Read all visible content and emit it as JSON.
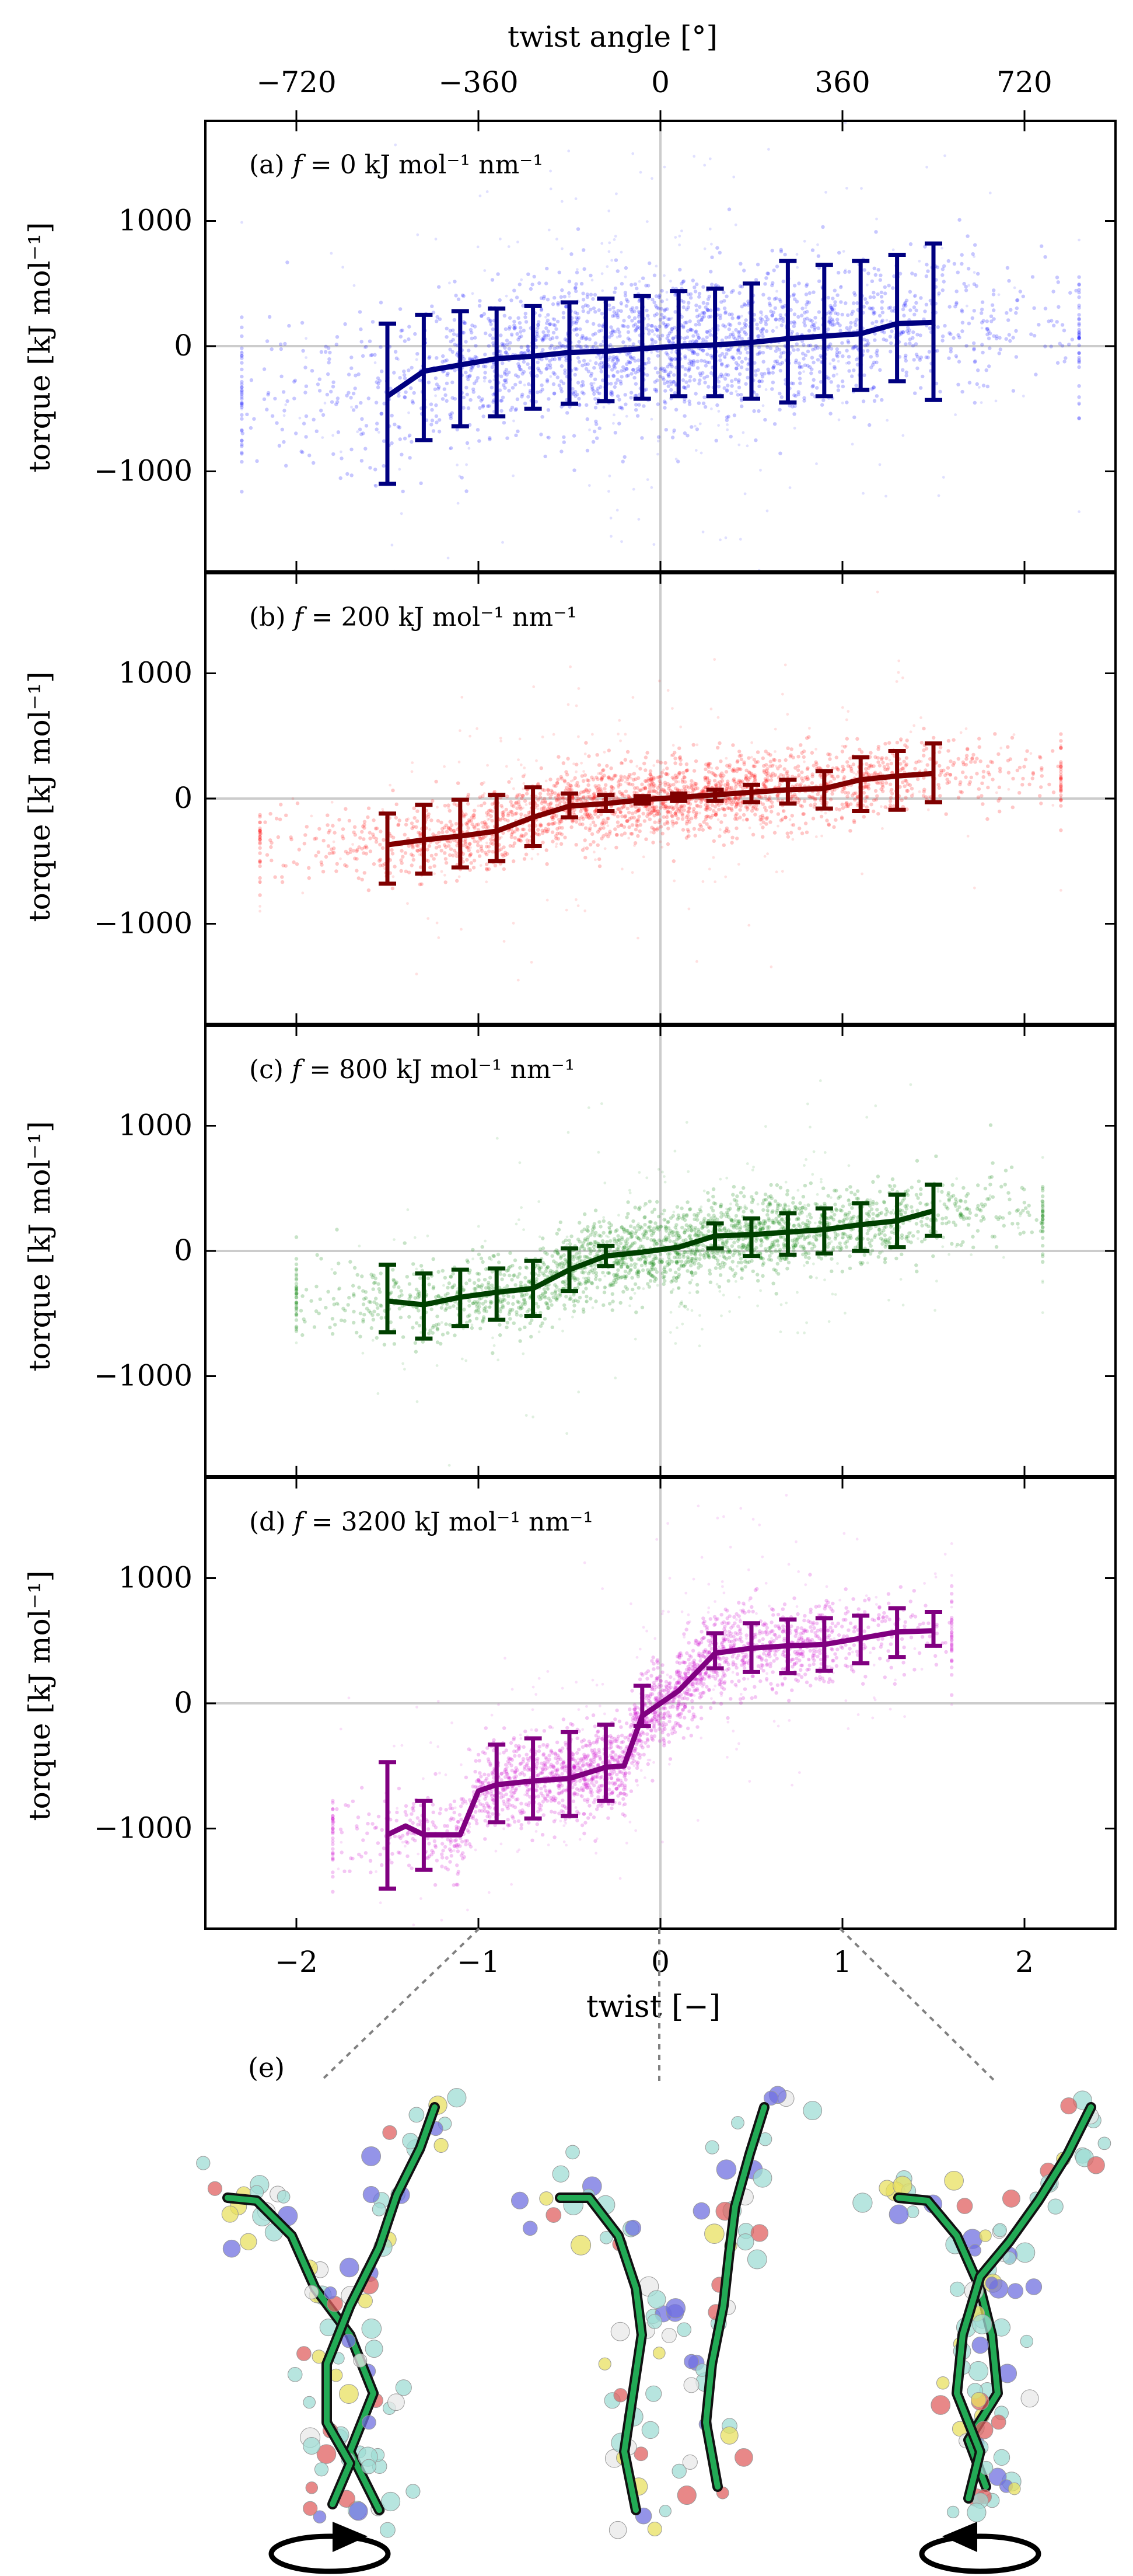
{
  "figure": {
    "top_axis_label": "twist angle [°]",
    "top_ticks": [
      -720,
      -360,
      0,
      360,
      720
    ],
    "top_tick_labels": [
      "−720",
      "−360",
      "0",
      "360",
      "720"
    ],
    "x_label": "twist  [−]",
    "y_label": "torque [kJ mol⁻¹]",
    "panel_e_label": "(e)"
  },
  "chart_data": [
    {
      "type": "scatter",
      "panel": "a",
      "title_prefix": "(a)",
      "force_value": "0",
      "title_units": "kJ mol⁻¹ nm⁻¹",
      "xlabel": "twist [−]",
      "ylabel": "torque [kJ mol⁻¹]",
      "xlim": [
        -2.5,
        2.5
      ],
      "ylim": [
        -1800,
        1800
      ],
      "xticks": [
        -2,
        -1,
        0,
        1,
        2
      ],
      "yticks": [
        -1000,
        0,
        1000
      ],
      "ytick_labels": [
        "−1000",
        "0",
        "1000"
      ],
      "color": "#0000ff",
      "line_color": "#000080",
      "scatter_x_range": [
        -2.3,
        2.3
      ],
      "scatter_sigma": 300,
      "mean_line": {
        "x": [
          -1.5,
          -1.3,
          -1.1,
          -0.9,
          -0.7,
          -0.5,
          -0.3,
          -0.1,
          0.1,
          0.3,
          0.5,
          0.7,
          0.9,
          1.1,
          1.3,
          1.5
        ],
        "y": [
          -400,
          -200,
          -150,
          -100,
          -80,
          -50,
          -40,
          -20,
          0,
          10,
          30,
          60,
          80,
          100,
          180,
          190
        ]
      },
      "error_bars": [
        {
          "x": -1.5,
          "y": -450,
          "lo": -1100,
          "hi": 180
        },
        {
          "x": -1.3,
          "y": -230,
          "lo": -750,
          "hi": 250
        },
        {
          "x": -1.1,
          "y": -180,
          "lo": -640,
          "hi": 280
        },
        {
          "x": -0.9,
          "y": -120,
          "lo": -560,
          "hi": 300
        },
        {
          "x": -0.7,
          "y": -80,
          "lo": -500,
          "hi": 320
        },
        {
          "x": -0.5,
          "y": -50,
          "lo": -460,
          "hi": 350
        },
        {
          "x": -0.3,
          "y": -30,
          "lo": -440,
          "hi": 380
        },
        {
          "x": -0.1,
          "y": -10,
          "lo": -420,
          "hi": 400
        },
        {
          "x": 0.1,
          "y": 10,
          "lo": -400,
          "hi": 440
        },
        {
          "x": 0.3,
          "y": 20,
          "lo": -400,
          "hi": 460
        },
        {
          "x": 0.5,
          "y": 40,
          "lo": -420,
          "hi": 500
        },
        {
          "x": 0.7,
          "y": 60,
          "lo": -450,
          "hi": 680
        },
        {
          "x": 0.9,
          "y": 80,
          "lo": -400,
          "hi": 650
        },
        {
          "x": 1.1,
          "y": 100,
          "lo": -350,
          "hi": 680
        },
        {
          "x": 1.3,
          "y": 180,
          "lo": -280,
          "hi": 730
        },
        {
          "x": 1.5,
          "y": 190,
          "lo": -430,
          "hi": 820
        }
      ]
    },
    {
      "type": "scatter",
      "panel": "b",
      "title_prefix": "(b)",
      "force_value": "200",
      "title_units": "kJ mol⁻¹ nm⁻¹",
      "xlabel": "twist [−]",
      "ylabel": "torque [kJ mol⁻¹]",
      "xlim": [
        -2.5,
        2.5
      ],
      "ylim": [
        -1800,
        1800
      ],
      "xticks": [
        -2,
        -1,
        0,
        1,
        2
      ],
      "yticks": [
        -1000,
        0,
        1000
      ],
      "ytick_labels": [
        "−1000",
        "0",
        "1000"
      ],
      "color": "#ff0000",
      "line_color": "#800000",
      "scatter_x_range": [
        -2.2,
        2.2
      ],
      "scatter_sigma": 150,
      "mean_line": {
        "x": [
          -1.5,
          -1.3,
          -1.1,
          -0.9,
          -0.7,
          -0.5,
          -0.3,
          -0.1,
          0.1,
          0.3,
          0.5,
          0.7,
          0.9,
          1.1,
          1.3,
          1.5
        ],
        "y": [
          -370,
          -330,
          -300,
          -260,
          -150,
          -60,
          -40,
          -10,
          10,
          30,
          50,
          70,
          80,
          150,
          180,
          200
        ]
      },
      "error_bars": [
        {
          "x": -1.5,
          "y": -370,
          "lo": -680,
          "hi": -120
        },
        {
          "x": -1.3,
          "y": -330,
          "lo": -600,
          "hi": -50
        },
        {
          "x": -1.1,
          "y": -300,
          "lo": -550,
          "hi": -10
        },
        {
          "x": -0.9,
          "y": -260,
          "lo": -500,
          "hi": 30
        },
        {
          "x": -0.7,
          "y": -150,
          "lo": -380,
          "hi": 90
        },
        {
          "x": -0.5,
          "y": -60,
          "lo": -150,
          "hi": 40
        },
        {
          "x": -0.3,
          "y": -40,
          "lo": -100,
          "hi": 30
        },
        {
          "x": -0.1,
          "y": -10,
          "lo": -40,
          "hi": 20
        },
        {
          "x": 0.1,
          "y": 10,
          "lo": -20,
          "hi": 40
        },
        {
          "x": 0.3,
          "y": 30,
          "lo": -20,
          "hi": 70
        },
        {
          "x": 0.5,
          "y": 50,
          "lo": -30,
          "hi": 110
        },
        {
          "x": 0.7,
          "y": 70,
          "lo": -40,
          "hi": 150
        },
        {
          "x": 0.9,
          "y": 80,
          "lo": -80,
          "hi": 220
        },
        {
          "x": 1.1,
          "y": 150,
          "lo": -100,
          "hi": 330
        },
        {
          "x": 1.3,
          "y": 180,
          "lo": -90,
          "hi": 380
        },
        {
          "x": 1.5,
          "y": 200,
          "lo": -30,
          "hi": 440
        }
      ]
    },
    {
      "type": "scatter",
      "panel": "c",
      "title_prefix": "(c)",
      "force_value": "800",
      "title_units": "kJ mol⁻¹ nm⁻¹",
      "xlabel": "twist [−]",
      "ylabel": "torque [kJ mol⁻¹]",
      "xlim": [
        -2.5,
        2.5
      ],
      "ylim": [
        -1800,
        1800
      ],
      "xticks": [
        -2,
        -1,
        0,
        1,
        2
      ],
      "yticks": [
        -1000,
        0,
        1000
      ],
      "ytick_labels": [
        "−1000",
        "0",
        "1000"
      ],
      "color": "#008000",
      "line_color": "#004000",
      "scatter_x_range": [
        -2.0,
        2.1
      ],
      "scatter_sigma": 160,
      "mean_line": {
        "x": [
          -1.5,
          -1.3,
          -1.1,
          -0.9,
          -0.7,
          -0.5,
          -0.3,
          -0.1,
          0.1,
          0.3,
          0.5,
          0.7,
          0.9,
          1.1,
          1.3,
          1.5
        ],
        "y": [
          -400,
          -430,
          -370,
          -330,
          -300,
          -150,
          -40,
          -10,
          30,
          120,
          130,
          150,
          170,
          210,
          240,
          320
        ]
      },
      "error_bars": [
        {
          "x": -1.5,
          "y": -400,
          "lo": -650,
          "hi": -110
        },
        {
          "x": -1.3,
          "y": -430,
          "lo": -700,
          "hi": -180
        },
        {
          "x": -1.1,
          "y": -370,
          "lo": -600,
          "hi": -150
        },
        {
          "x": -0.9,
          "y": -330,
          "lo": -550,
          "hi": -140
        },
        {
          "x": -0.7,
          "y": -300,
          "lo": -520,
          "hi": -80
        },
        {
          "x": -0.5,
          "y": -150,
          "lo": -320,
          "hi": 20
        },
        {
          "x": -0.3,
          "y": -40,
          "lo": -120,
          "hi": 40
        },
        {
          "x": 0.3,
          "y": 120,
          "lo": 20,
          "hi": 220
        },
        {
          "x": 0.5,
          "y": 130,
          "lo": -40,
          "hi": 260
        },
        {
          "x": 0.7,
          "y": 150,
          "lo": -30,
          "hi": 300
        },
        {
          "x": 0.9,
          "y": 170,
          "lo": -20,
          "hi": 340
        },
        {
          "x": 1.1,
          "y": 210,
          "lo": 0,
          "hi": 380
        },
        {
          "x": 1.3,
          "y": 240,
          "lo": 30,
          "hi": 450
        },
        {
          "x": 1.5,
          "y": 320,
          "lo": 120,
          "hi": 530
        }
      ]
    },
    {
      "type": "scatter",
      "panel": "d",
      "title_prefix": "(d)",
      "force_value": "3200",
      "title_units": "kJ mol⁻¹ nm⁻¹",
      "xlabel": "twist [−]",
      "ylabel": "torque [kJ mol⁻¹]",
      "xlim": [
        -2.5,
        2.5
      ],
      "ylim": [
        -1800,
        1800
      ],
      "xticks": [
        -2,
        -1,
        0,
        1,
        2
      ],
      "yticks": [
        -1000,
        0,
        1000
      ],
      "ytick_labels": [
        "−1000",
        "0",
        "1000"
      ],
      "color": "#cc00cc",
      "line_color": "#800080",
      "scatter_x_range": [
        -1.8,
        1.6
      ],
      "scatter_sigma": 170,
      "mean_line": {
        "x": [
          -1.5,
          -1.4,
          -1.3,
          -1.1,
          -1.0,
          -0.9,
          -0.7,
          -0.5,
          -0.3,
          -0.2,
          -0.1,
          0.1,
          0.3,
          0.5,
          0.7,
          0.9,
          1.1,
          1.3,
          1.5
        ],
        "y": [
          -1050,
          -980,
          -1050,
          -1050,
          -700,
          -650,
          -620,
          -600,
          -510,
          -500,
          -100,
          100,
          400,
          440,
          460,
          470,
          520,
          570,
          580
        ]
      },
      "error_bars": [
        {
          "x": -1.5,
          "y": -1050,
          "lo": -1480,
          "hi": -470
        },
        {
          "x": -1.3,
          "y": -1050,
          "lo": -1330,
          "hi": -780
        },
        {
          "x": -0.9,
          "y": -650,
          "lo": -950,
          "hi": -330
        },
        {
          "x": -0.7,
          "y": -620,
          "lo": -920,
          "hi": -280
        },
        {
          "x": -0.5,
          "y": -580,
          "lo": -900,
          "hi": -230
        },
        {
          "x": -0.3,
          "y": -510,
          "lo": -780,
          "hi": -170
        },
        {
          "x": -0.1,
          "y": -20,
          "lo": -180,
          "hi": 140
        },
        {
          "x": 0.3,
          "y": 400,
          "lo": 280,
          "hi": 560
        },
        {
          "x": 0.5,
          "y": 440,
          "lo": 250,
          "hi": 640
        },
        {
          "x": 0.7,
          "y": 460,
          "lo": 240,
          "hi": 670
        },
        {
          "x": 0.9,
          "y": 470,
          "lo": 260,
          "hi": 680
        },
        {
          "x": 1.1,
          "y": 520,
          "lo": 320,
          "hi": 700
        },
        {
          "x": 1.3,
          "y": 570,
          "lo": 370,
          "hi": 760
        },
        {
          "x": 1.5,
          "y": 580,
          "lo": 460,
          "hi": 730
        }
      ]
    }
  ],
  "molecule_snapshots": [
    {
      "name": "snapshot-negative-twist",
      "twist_ref": -1,
      "rotation": "clockwise"
    },
    {
      "name": "snapshot-zero-twist",
      "twist_ref": 0,
      "rotation": "none"
    },
    {
      "name": "snapshot-positive-twist",
      "twist_ref": 1,
      "rotation": "counterclockwise"
    }
  ],
  "colors": {
    "axis": "#000000",
    "zero_line": "#cccccc",
    "connector": "#808080",
    "strand": "#22aa55",
    "atom_carbon": "#9fdcd4",
    "atom_oxygen": "#e06060",
    "atom_sulfur": "#e8e060",
    "atom_nitrogen": "#7070e0",
    "atom_hydrogen": "#e8e8e8"
  }
}
